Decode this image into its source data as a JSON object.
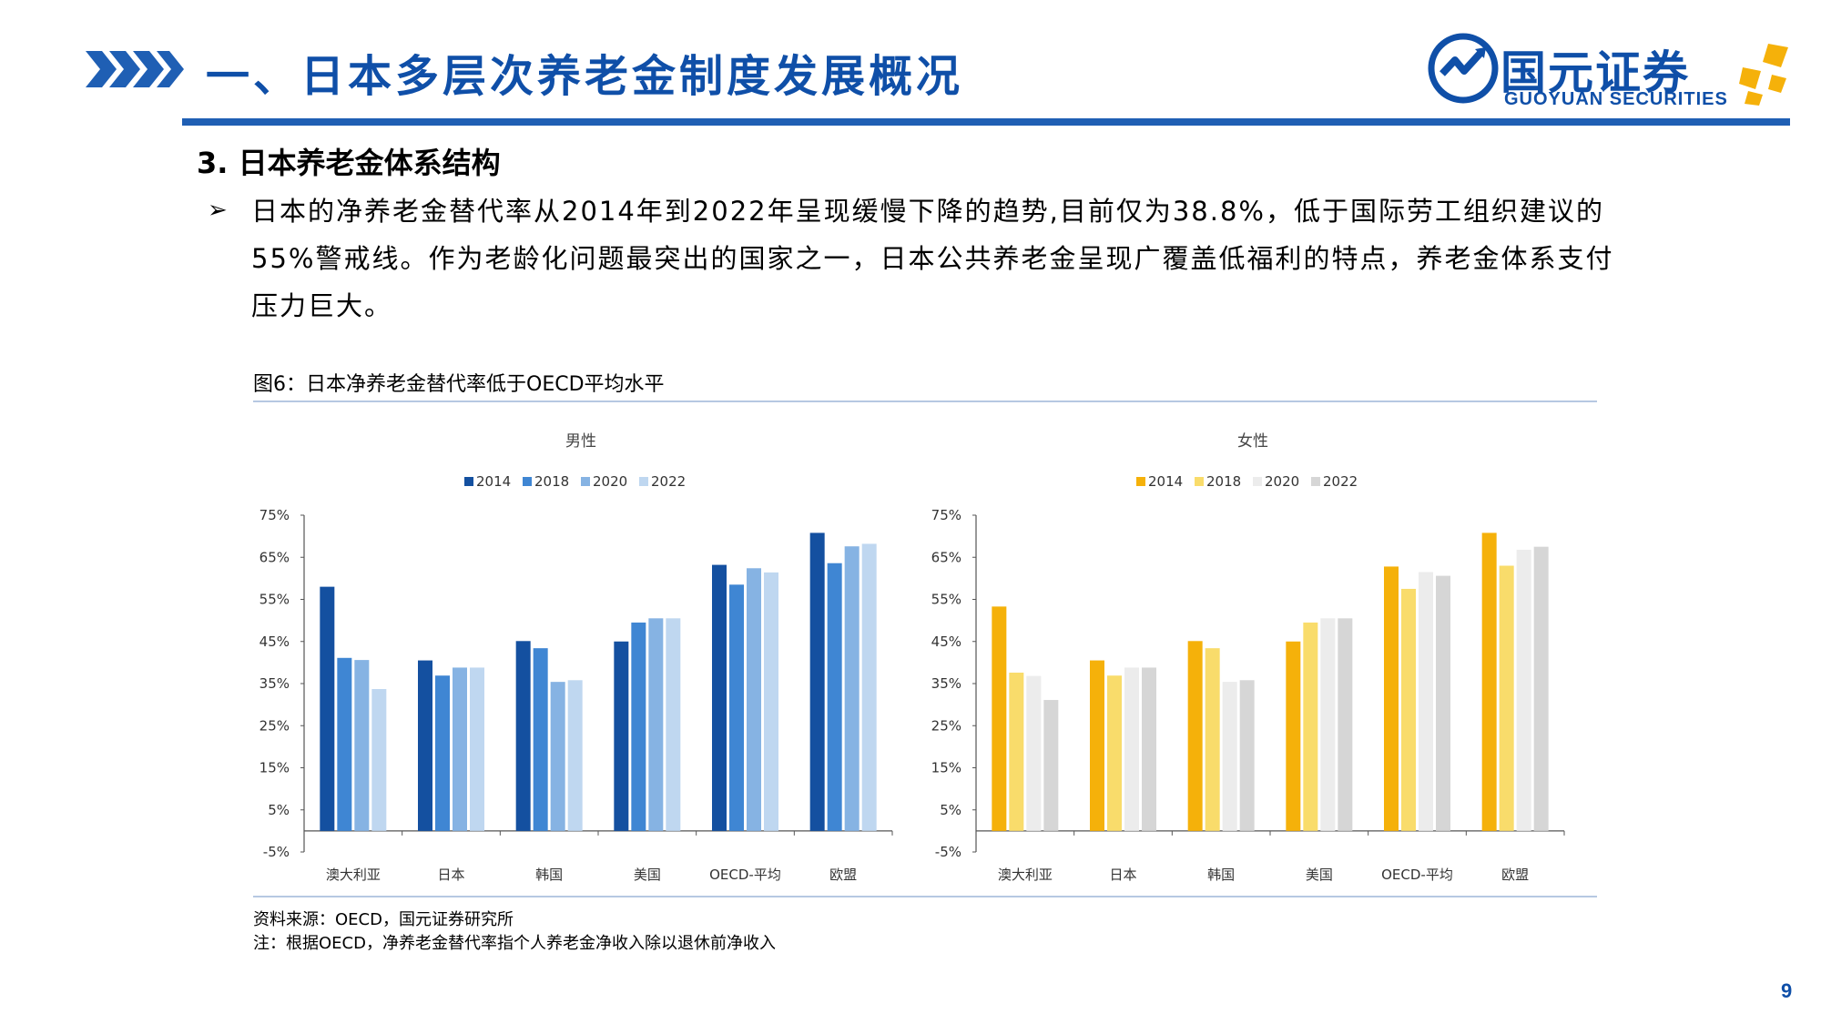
{
  "header": {
    "title": "一、日本多层次养老金制度发展概况",
    "logo_cn": "国元证券",
    "logo_en": "GUOYUAN SECURITIES"
  },
  "section_title": "3. 日本养老金体系结构",
  "bullet_symbol": "➢",
  "paragraph": "日本的净养老金替代率从2014年到2022年呈现缓慢下降的趋势,目前仅为38.8%，低于国际劳工组织建议的55%警戒线。作为老龄化问题最突出的国家之一，日本公共养老金呈现广覆盖低福利的特点，养老金体系支付压力巨大。",
  "figure_title": "图6：日本净养老金替代率低于OECD平均水平",
  "source_line": "资料来源：OECD，国元证券研究所",
  "note_line": "注：根据OECD，净养老金替代率指个人养老金净收入除以退休前净收入",
  "page_number": "9",
  "chart_data": [
    {
      "type": "bar",
      "title": "男性",
      "categories": [
        "澳大利亚",
        "日本",
        "韩国",
        "美国",
        "OECD-平均",
        "欧盟"
      ],
      "series": [
        {
          "name": "2014",
          "color": "#1450a0",
          "values": [
            58.0,
            40.5,
            45.1,
            45.0,
            63.2,
            70.8
          ]
        },
        {
          "name": "2018",
          "color": "#3f86d3",
          "values": [
            41.1,
            36.9,
            43.4,
            49.5,
            58.5,
            63.6
          ]
        },
        {
          "name": "2020",
          "color": "#86b3e3",
          "values": [
            40.6,
            38.8,
            35.4,
            50.5,
            62.4,
            67.6
          ]
        },
        {
          "name": "2022",
          "color": "#bfd7f0",
          "values": [
            33.7,
            38.8,
            35.8,
            50.5,
            61.4,
            68.2
          ]
        }
      ],
      "yticks": [
        "75%",
        "65%",
        "55%",
        "45%",
        "35%",
        "25%",
        "15%",
        "5%",
        "-5%"
      ],
      "ylim": [
        -5,
        75
      ],
      "legend_position": "top"
    },
    {
      "type": "bar",
      "title": "女性",
      "categories": [
        "澳大利亚",
        "日本",
        "韩国",
        "美国",
        "OECD-平均",
        "欧盟"
      ],
      "series": [
        {
          "name": "2014",
          "color": "#f5b10a",
          "values": [
            53.3,
            40.5,
            45.1,
            45.0,
            62.8,
            70.8
          ]
        },
        {
          "name": "2018",
          "color": "#f9dc6b",
          "values": [
            37.6,
            36.9,
            43.4,
            49.5,
            57.5,
            63.0
          ]
        },
        {
          "name": "2020",
          "color": "#ececec",
          "values": [
            36.8,
            38.8,
            35.4,
            50.5,
            61.5,
            66.8
          ]
        },
        {
          "name": "2022",
          "color": "#d6d6d6",
          "values": [
            31.1,
            38.8,
            35.8,
            50.5,
            60.6,
            67.5
          ]
        }
      ],
      "yticks": [
        "75%",
        "65%",
        "55%",
        "45%",
        "35%",
        "25%",
        "15%",
        "5%",
        "-5%"
      ],
      "ylim": [
        -5,
        75
      ],
      "legend_position": "top"
    }
  ]
}
